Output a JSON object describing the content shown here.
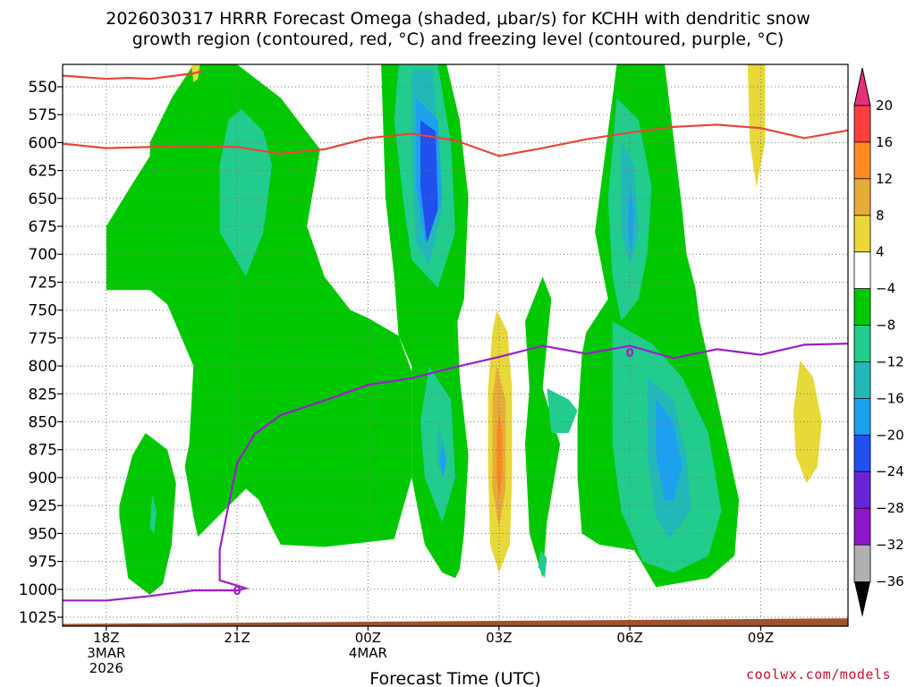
{
  "header": {
    "title_line1": "2026030317 HRRR Forecast Omega (shaded, μbar/s) for KCHH with dendritic snow",
    "title_line2": "growth region (contoured, red, °C) and freezing level (contoured, purple, °C)"
  },
  "credit": "coolwx.com/models",
  "chart_data": {
    "type": "time-height cross section (filled contour)",
    "xlabel": "Forecast Time (UTC)",
    "ylabel": "",
    "x_ticks": [
      {
        "hour": 18,
        "lines": [
          "18Z",
          "3MAR",
          "2026"
        ]
      },
      {
        "hour": 21,
        "lines": [
          "21Z"
        ]
      },
      {
        "hour": 24,
        "lines": [
          "00Z",
          "4MAR"
        ]
      },
      {
        "hour": 27,
        "lines": [
          "03Z"
        ]
      },
      {
        "hour": 30,
        "lines": [
          "06Z"
        ]
      },
      {
        "hour": 33,
        "lines": [
          "09Z"
        ]
      }
    ],
    "xlim_hours": [
      17,
      35
    ],
    "y_ticks": [
      550,
      575,
      600,
      625,
      650,
      675,
      700,
      725,
      750,
      775,
      800,
      825,
      850,
      875,
      900,
      925,
      950,
      975,
      1000,
      1025
    ],
    "ylim_hpa": [
      530,
      1033
    ],
    "grid": true,
    "colorbar": {
      "labels": [
        "20",
        "16",
        "12",
        "8",
        "4",
        "−4",
        "−8",
        "−12",
        "−16",
        "−20",
        "−24",
        "−28",
        "−32",
        "−36"
      ],
      "colors": [
        "#ff3f3f",
        "#ff8a1f",
        "#e6ac3a",
        "#e8d838",
        "#ffffff",
        "#00c800",
        "#22cc8c",
        "#22b8b8",
        "#1ea0f0",
        "#2050ee",
        "#6a24d8",
        "#8e18c8",
        "#b0b0b0"
      ],
      "top_arrow_color": "#e6307a",
      "bottom_arrow_color": "#000000"
    },
    "omega_colors": {
      "green": "#00c800",
      "teal": "#22cc8c",
      "cyan": "#22b8b8",
      "lightblue": "#1ea0f0",
      "blue": "#2050ee",
      "yellow": "#e8d838",
      "amber": "#e6ac3a",
      "orange": "#ff8a1f"
    },
    "dendritic_line": {
      "color": "#e8453c",
      "series": [
        {
          "points": [
            [
              17.0,
              540
            ],
            [
              18.0,
              543
            ],
            [
              18.5,
              542
            ],
            [
              19.0,
              543
            ],
            [
              20.0,
              538
            ],
            [
              20.2,
              536
            ]
          ]
        },
        {
          "points": [
            [
              17.0,
              601
            ],
            [
              18.0,
              605
            ],
            [
              19.0,
              604
            ],
            [
              20.0,
              603
            ],
            [
              21.0,
              604
            ],
            [
              22.0,
              610
            ],
            [
              23.0,
              606
            ],
            [
              24.0,
              596
            ],
            [
              25.0,
              592
            ],
            [
              26.0,
              598
            ],
            [
              27.0,
              612
            ],
            [
              28.0,
              605
            ],
            [
              29.0,
              597
            ],
            [
              30.0,
              591
            ],
            [
              31.0,
              586
            ],
            [
              32.0,
              584
            ],
            [
              33.0,
              587
            ],
            [
              34.0,
              596
            ],
            [
              35.0,
              589
            ]
          ]
        }
      ]
    },
    "freezing_level": {
      "color": "#9b1fc9",
      "label": "0",
      "series": [
        {
          "points": [
            [
              17.0,
              1010
            ],
            [
              18.0,
              1010
            ],
            [
              19.0,
              1006
            ],
            [
              20.0,
              1001
            ],
            [
              21.0,
              1001
            ],
            [
              21.2,
              999
            ],
            [
              20.6,
              992
            ],
            [
              20.6,
              965
            ],
            [
              20.75,
              935
            ],
            [
              21.0,
              887
            ],
            [
              21.4,
              861
            ],
            [
              22.0,
              844
            ],
            [
              23.0,
              831
            ],
            [
              24.0,
              817
            ],
            [
              25.0,
              811
            ],
            [
              26.0,
              801
            ],
            [
              27.0,
              792
            ],
            [
              28.0,
              782
            ],
            [
              29.0,
              789
            ],
            [
              30.0,
              782
            ],
            [
              31.0,
              793
            ],
            [
              32.0,
              785
            ],
            [
              33.0,
              790
            ],
            [
              34.0,
              781
            ],
            [
              35.0,
              780
            ]
          ]
        }
      ]
    },
    "terrain_color": "#a0522d"
  }
}
